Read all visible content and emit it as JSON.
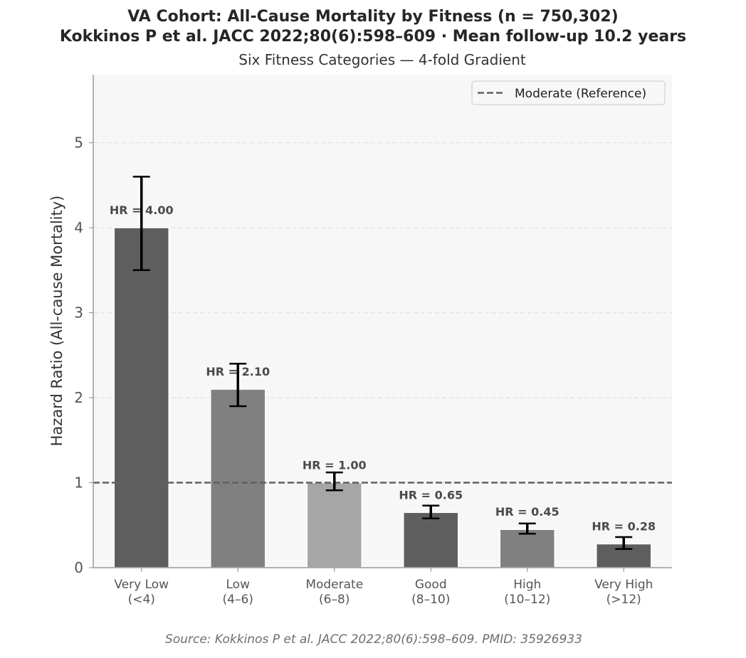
{
  "chart_data": {
    "type": "bar",
    "title": "VA Cohort: All-Cause Mortality by Fitness (n = 750,302)",
    "title_line2": "Kokkinos P et al. JACC 2022;80(6):598–609  ·  Mean follow-up 10.2 years",
    "subtitle": "Six Fitness Categories — 4-fold Gradient",
    "xlabel": "",
    "ylabel": "Hazard Ratio (All-cause Mortality)",
    "ylim": [
      0,
      5.8
    ],
    "yticks": [
      0,
      1,
      2,
      3,
      4,
      5
    ],
    "grid": true,
    "categories": [
      [
        "Very Low",
        "(<4)"
      ],
      [
        "Low",
        "(4–6)"
      ],
      [
        "Moderate",
        "(6–8)"
      ],
      [
        "Good",
        "(8–10)"
      ],
      [
        "High",
        "(10–12)"
      ],
      [
        "Very High",
        "(>12)"
      ]
    ],
    "values": [
      4.0,
      2.1,
      1.0,
      0.65,
      0.45,
      0.28
    ],
    "ci_lower": [
      3.5,
      1.9,
      0.91,
      0.58,
      0.4,
      0.22
    ],
    "ci_upper": [
      4.6,
      2.4,
      1.12,
      0.73,
      0.52,
      0.36
    ],
    "data_labels": [
      "HR = 4.00",
      "HR = 2.10",
      "HR = 1.00",
      "HR = 0.65",
      "HR = 0.45",
      "HR = 0.28"
    ],
    "bar_colors": [
      "#5e5e5e",
      "#808080",
      "#a6a6a6",
      "#5e5e5e",
      "#808080",
      "#5e5e5e"
    ],
    "reference_line": {
      "y": 1,
      "label": "Moderate (Reference)",
      "color": "#606060",
      "style": "dashed"
    },
    "legend_position": "top-right",
    "background": "#f7f7f7"
  },
  "source": "Source: Kokkinos P et al. JACC 2022;80(6):598–609. PMID: 35926933"
}
